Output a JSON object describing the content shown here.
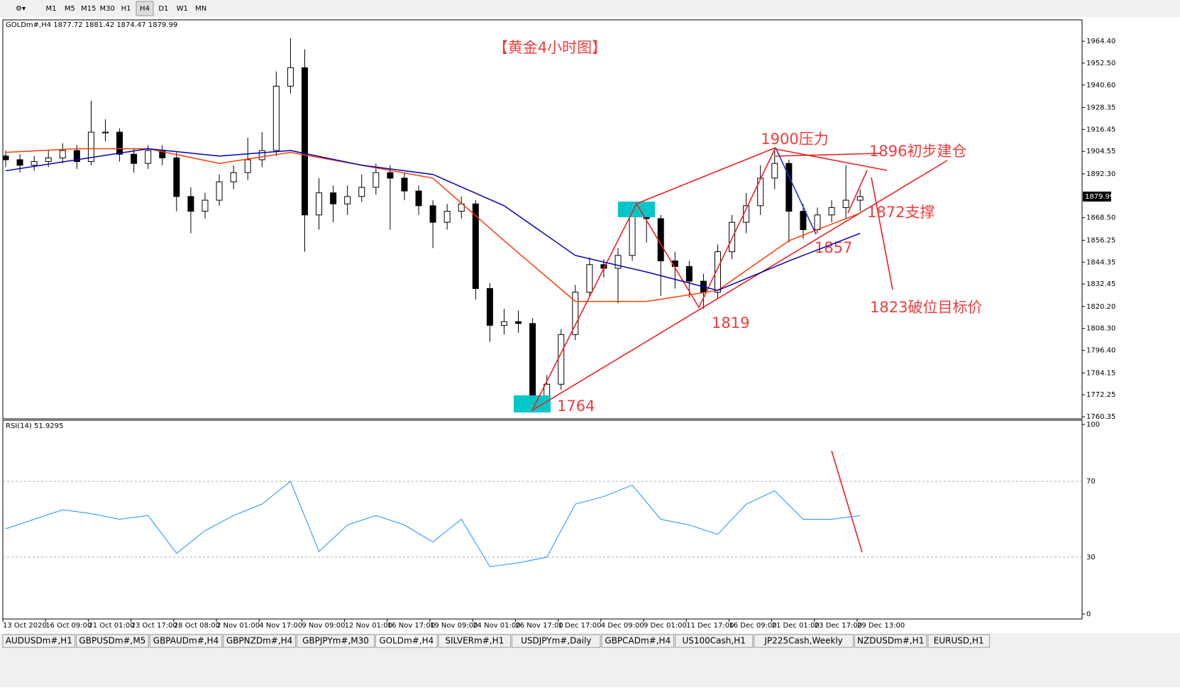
{
  "toolbar": {
    "timeframes": [
      "M1",
      "M5",
      "M15",
      "M30",
      "H1",
      "H4",
      "D1",
      "W1",
      "MN"
    ],
    "active": "H4"
  },
  "chart_data": {
    "type": "candlestick",
    "header": "GOLDm#,H4  1877.72 1881.42 1874.47 1879.99",
    "title": "【黄金4小时图】",
    "open": [
      1902,
      1900,
      1897,
      1899,
      1901,
      1905,
      1899,
      1915,
      1915,
      1903,
      1898,
      1905,
      1901,
      1880,
      1872,
      1878,
      1888,
      1893,
      1900,
      1905,
      1940,
      1950,
      1870,
      1882,
      1876,
      1880,
      1885,
      1893,
      1890,
      1883,
      1875,
      1866,
      1872,
      1876,
      1830,
      1810,
      1812,
      1811,
      1768,
      1778,
      1805,
      1828,
      1843,
      1841,
      1848,
      1872,
      1868,
      1845,
      1842,
      1834,
      1828,
      1850,
      1866,
      1875,
      1890,
      1898,
      1872,
      1862,
      1870,
      1874,
      1878
    ],
    "high": [
      1905,
      1903,
      1902,
      1905,
      1909,
      1908,
      1932,
      1922,
      1917,
      1906,
      1908,
      1908,
      1904,
      1885,
      1882,
      1892,
      1897,
      1912,
      1915,
      1948,
      1966,
      1960,
      1890,
      1886,
      1886,
      1892,
      1898,
      1897,
      1893,
      1886,
      1878,
      1876,
      1880,
      1878,
      1833,
      1819,
      1818,
      1814,
      1783,
      1808,
      1832,
      1847,
      1846,
      1852,
      1877,
      1876,
      1870,
      1850,
      1845,
      1838,
      1854,
      1870,
      1882,
      1897,
      1906,
      1900,
      1876,
      1874,
      1878,
      1897,
      1884
    ],
    "low": [
      1896,
      1893,
      1894,
      1896,
      1898,
      1895,
      1897,
      1910,
      1899,
      1893,
      1895,
      1897,
      1872,
      1860,
      1868,
      1875,
      1884,
      1889,
      1896,
      1902,
      1936,
      1850,
      1862,
      1866,
      1870,
      1877,
      1881,
      1862,
      1878,
      1870,
      1852,
      1862,
      1868,
      1824,
      1801,
      1805,
      1806,
      1764,
      1765,
      1775,
      1802,
      1825,
      1836,
      1822,
      1845,
      1855,
      1826,
      1830,
      1825,
      1819,
      1825,
      1846,
      1860,
      1870,
      1884,
      1855,
      1857,
      1860,
      1866,
      1868,
      1872
    ],
    "close": [
      1900,
      1897,
      1899,
      1901,
      1905,
      1899,
      1915,
      1915,
      1903,
      1898,
      1905,
      1901,
      1880,
      1872,
      1878,
      1888,
      1893,
      1900,
      1905,
      1940,
      1950,
      1870,
      1882,
      1876,
      1880,
      1885,
      1893,
      1890,
      1883,
      1875,
      1866,
      1872,
      1876,
      1830,
      1810,
      1812,
      1811,
      1768,
      1778,
      1805,
      1828,
      1843,
      1841,
      1848,
      1872,
      1868,
      1845,
      1842,
      1834,
      1828,
      1850,
      1866,
      1875,
      1890,
      1898,
      1872,
      1862,
      1870,
      1874,
      1878,
      1880
    ],
    "ma_series": [
      {
        "color": "#ff3c00",
        "values": [
          1904,
          1906,
          1906,
          1898,
          1904,
          1897,
          1890,
          1856,
          1823,
          1823,
          1829,
          1856,
          1871
        ]
      },
      {
        "color": "#0000b4",
        "values": [
          1894,
          1900,
          1906,
          1902,
          1905,
          1897,
          1892,
          1875,
          1848,
          1839,
          1829,
          1845,
          1860
        ]
      }
    ],
    "last_price": 1879.99,
    "ylim": [
      1759.2,
      1976.0
    ],
    "yticks": [
      {
        "value": 1964.4,
        "label": "1964.40"
      },
      {
        "value": 1952.5,
        "label": "1952.50"
      },
      {
        "value": 1940.6,
        "label": "1940.60"
      },
      {
        "value": 1928.35,
        "label": "1928.35"
      },
      {
        "value": 1916.45,
        "label": "1916.45"
      },
      {
        "value": 1904.55,
        "label": "1904.55"
      },
      {
        "value": 1892.3,
        "label": "1892.30"
      },
      {
        "value": 1868.5,
        "label": "1868.50"
      },
      {
        "value": 1856.25,
        "label": "1856.25"
      },
      {
        "value": 1844.35,
        "label": "1844.35"
      },
      {
        "value": 1832.45,
        "label": "1832.45"
      },
      {
        "value": 1820.2,
        "label": "1820.20"
      },
      {
        "value": 1808.3,
        "label": "1808.30"
      },
      {
        "value": 1796.4,
        "label": "1796.40"
      },
      {
        "value": 1784.15,
        "label": "1784.15"
      },
      {
        "value": 1772.25,
        "label": "1772.25"
      },
      {
        "value": 1760.35,
        "label": "1760.35"
      }
    ],
    "xtick_labels": [
      "13 Oct 2020",
      "16 Oct 09:00",
      "21 Oct 01:00",
      "23 Oct 17:00",
      "28 Oct 08:00",
      "2 Nov 01:00",
      "4 Nov 17:00",
      "9 Nov 09:00",
      "12 Nov 01:00",
      "16 Nov 17:00",
      "19 Nov 09:00",
      "24 Nov 01:00",
      "26 Nov 17:00",
      "1 Dec 17:00",
      "4 Dec 09:00",
      "9 Dec 01:00",
      "11 Dec 17:00",
      "16 Dec 09:00",
      "21 Dec 01:00",
      "23 Dec 17:00",
      "29 Dec 13:00"
    ],
    "annotations": [
      "1900压力",
      "1896初步建仓",
      "1872支撑",
      "1857",
      "1819",
      "1764",
      "1823破位目标价"
    ],
    "rsi": {
      "label": "RSI(14) 51.9295",
      "color": "#1e90ff",
      "values": [
        45,
        50,
        55,
        53,
        50,
        52,
        32,
        44,
        52,
        58,
        70,
        33,
        47,
        52,
        47,
        38,
        50,
        25,
        27,
        30,
        58,
        62,
        68,
        50,
        47,
        42,
        58,
        65,
        50,
        50,
        51.9
      ],
      "ylim": [
        0,
        100
      ],
      "yticks": [
        100,
        70,
        30,
        0
      ]
    }
  },
  "tabs": [
    "AUDUSDm#,H1",
    "GBPUSDm#,M5",
    "GBPAUDm#,H4",
    "GBPNZDm#,H4",
    "GBPJPYm#,M30",
    "GOLDm#,H4",
    "SILVERm#,H1",
    "USDJPYm#,Daily",
    "GBPCADm#,H4",
    "US100Cash,H1",
    "JP225Cash,Weekly",
    "NZDUSDm#,H1",
    "EURUSD,H1"
  ],
  "active_tab": 5
}
